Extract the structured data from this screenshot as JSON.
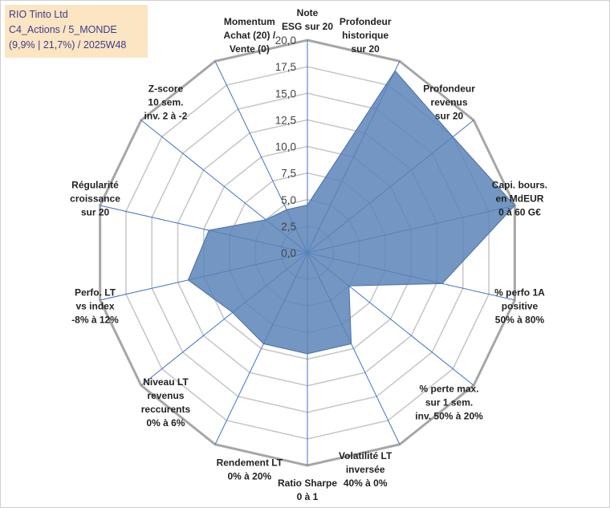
{
  "title_lines": [
    "RIO Tinto Ltd",
    "C4_Actions / 5_MONDE",
    "(9,9% | 21,7%) / 2025W48"
  ],
  "colors": {
    "fill": "#5b84b8",
    "stroke": "#4a6fa5",
    "ring": "#c8c8c8",
    "outer_ring": "#a6a6a6",
    "spoke": "#4472c4"
  },
  "chart_data": {
    "type": "radar",
    "range": [
      0,
      20
    ],
    "ticks": [
      "0,0",
      "2,5",
      "5,0",
      "7,5",
      "10,0",
      "12,5",
      "15,0",
      "17,5",
      "20,0"
    ],
    "axes": [
      {
        "lines": [
          "Note",
          "ESG sur 20"
        ],
        "value": 4.5
      },
      {
        "lines": [
          "Profondeur",
          "historique",
          "sur 20"
        ],
        "value": 19
      },
      {
        "lines": [
          "Profondeur",
          "revenus",
          "sur 20"
        ],
        "value": 17.5
      },
      {
        "lines": [
          "Capi. bours.",
          "en MdEUR",
          "0 à 60 G€"
        ],
        "value": 20
      },
      {
        "lines": [
          "% perfo 1A",
          "positive",
          "50% à 80%"
        ],
        "value": 13
      },
      {
        "lines": [
          "% perte max.",
          "sur 1 sem.",
          "inv. 50% à 20%"
        ],
        "value": 5
      },
      {
        "lines": [
          "Volatilité LT",
          "inversée",
          "40% à 0%"
        ],
        "value": 9.5
      },
      {
        "lines": [
          "Ratio Sharpe",
          "0 à 1"
        ],
        "value": 9.5
      },
      {
        "lines": [
          "Rendement LT",
          "0% à 20%"
        ],
        "value": 9.5
      },
      {
        "lines": [
          "Niveau LT",
          "revenus",
          "reccurents",
          "0% à 6%"
        ],
        "value": 9
      },
      {
        "lines": [
          "Perfo. LT",
          "vs index",
          "-8% à 12%"
        ],
        "value": 11.5
      },
      {
        "lines": [
          "Régularité",
          "croissance",
          "sur 20"
        ],
        "value": 9.5
      },
      {
        "lines": [
          "Z-score",
          "10 sem.",
          "inv. 2 à -2"
        ],
        "value": 5
      },
      {
        "lines": [
          "Momentum",
          "Achat (20) /",
          "Vente (0)"
        ],
        "value": 4.5
      }
    ]
  }
}
